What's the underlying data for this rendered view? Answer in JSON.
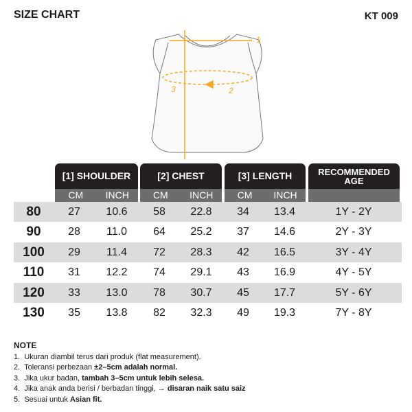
{
  "header": {
    "title": "SIZE CHART",
    "code": "KT 009"
  },
  "diagram": {
    "labels": [
      "1",
      "2",
      "3"
    ],
    "accent": "#f5a623"
  },
  "table": {
    "groups": [
      "[1] SHOULDER",
      "[2] CHEST",
      "[3] LENGTH",
      "RECOMMENDED AGE"
    ],
    "units": [
      "CM",
      "INCH",
      "CM",
      "INCH",
      "CM",
      "INCH"
    ],
    "rows": [
      {
        "size": "80",
        "cells": [
          "27",
          "10.6",
          "58",
          "22.8",
          "34",
          "13.4"
        ],
        "age": "1Y - 2Y"
      },
      {
        "size": "90",
        "cells": [
          "28",
          "11.0",
          "64",
          "25.2",
          "37",
          "14.6"
        ],
        "age": "2Y - 3Y"
      },
      {
        "size": "100",
        "cells": [
          "29",
          "11.4",
          "72",
          "28.3",
          "42",
          "16.5"
        ],
        "age": "3Y - 4Y"
      },
      {
        "size": "110",
        "cells": [
          "31",
          "12.2",
          "74",
          "29.1",
          "43",
          "16.9"
        ],
        "age": "4Y - 5Y"
      },
      {
        "size": "120",
        "cells": [
          "33",
          "13.0",
          "78",
          "30.7",
          "45",
          "17.7"
        ],
        "age": "5Y - 6Y"
      },
      {
        "size": "130",
        "cells": [
          "35",
          "13.8",
          "82",
          "32.3",
          "49",
          "19.3"
        ],
        "age": "7Y - 8Y"
      }
    ]
  },
  "notes": {
    "title": "NOTE",
    "items": [
      {
        "num": "1.",
        "text": "Ukuran diambil terus dari produk (flat measurement).",
        "bold": ""
      },
      {
        "num": "2.",
        "text": "Toleransi perbezaan ",
        "bold": "±2–5cm adalah normal."
      },
      {
        "num": "3.",
        "text": "Jika ukur badan, ",
        "bold": "tambah 3–5cm untuk lebih selesa."
      },
      {
        "num": "4.",
        "text": "Jika anak anda berisi / berbadan tinggi, → ",
        "bold": "disaran naik satu saiz"
      },
      {
        "num": "5.",
        "text": "Sesuai untuk ",
        "bold": "Asian fit."
      }
    ]
  }
}
